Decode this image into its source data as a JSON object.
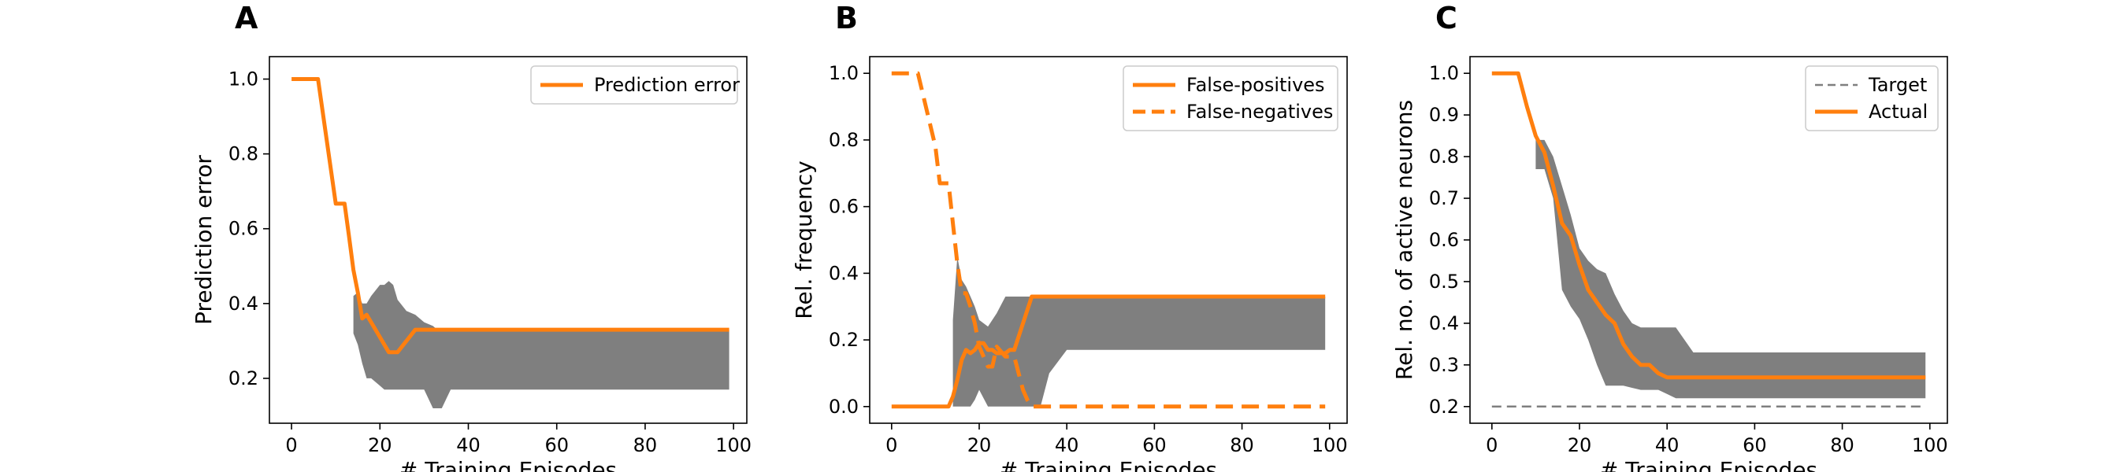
{
  "chart_data": [
    {
      "type": "line",
      "panel": "A",
      "xlabel": "# Training Episodes",
      "ylabel": "Prediction error",
      "xlim": [
        -5,
        103
      ],
      "ylim": [
        0.08,
        1.06
      ],
      "xticks": [
        0,
        20,
        40,
        60,
        80,
        100
      ],
      "yticks": [
        0.2,
        0.4,
        0.6,
        0.8,
        1.0
      ],
      "ytick_labels": [
        "0.2",
        "0.4",
        "0.6",
        "0.8",
        "1.0"
      ],
      "legend_position": "top-right",
      "series": [
        {
          "name": "Prediction error",
          "color": "#ff7f0e",
          "style": "solid",
          "x": [
            0,
            6,
            10,
            12,
            13,
            14,
            15,
            16,
            17,
            18,
            20,
            22,
            24,
            26,
            28,
            30,
            32,
            34,
            36,
            40,
            50,
            60,
            70,
            80,
            90,
            99
          ],
          "y": [
            1.0,
            1.0,
            0.667,
            0.667,
            0.58,
            0.49,
            0.43,
            0.36,
            0.37,
            0.35,
            0.31,
            0.27,
            0.27,
            0.3,
            0.33,
            0.33,
            0.33,
            0.33,
            0.33,
            0.33,
            0.33,
            0.33,
            0.33,
            0.33,
            0.33,
            0.33
          ]
        }
      ],
      "band": {
        "color": "#7f7f7f",
        "x": [
          14,
          15,
          16,
          17,
          18,
          20,
          21,
          22,
          23,
          24,
          26,
          28,
          30,
          32,
          33,
          34,
          36,
          40,
          60,
          80,
          99
        ],
        "upper": [
          0.42,
          0.43,
          0.4,
          0.4,
          0.42,
          0.45,
          0.45,
          0.46,
          0.45,
          0.41,
          0.38,
          0.37,
          0.35,
          0.34,
          0.33,
          0.33,
          0.33,
          0.33,
          0.33,
          0.33,
          0.33
        ],
        "lower": [
          0.32,
          0.29,
          0.24,
          0.2,
          0.2,
          0.18,
          0.17,
          0.17,
          0.17,
          0.17,
          0.17,
          0.17,
          0.17,
          0.12,
          0.12,
          0.12,
          0.17,
          0.17,
          0.17,
          0.17,
          0.17
        ]
      }
    },
    {
      "type": "line",
      "panel": "B",
      "xlabel": "# Training Episodes",
      "ylabel": "Rel. frequency",
      "xlim": [
        -5,
        104
      ],
      "ylim": [
        -0.05,
        1.05
      ],
      "xticks": [
        0,
        20,
        40,
        60,
        80,
        100
      ],
      "yticks": [
        0.0,
        0.2,
        0.4,
        0.6,
        0.8,
        1.0
      ],
      "ytick_labels": [
        "0.0",
        "0.2",
        "0.4",
        "0.6",
        "0.8",
        "1.0"
      ],
      "legend_position": "top-right",
      "series": [
        {
          "name": "False-positives",
          "color": "#ff7f0e",
          "style": "solid",
          "x": [
            0,
            13,
            14,
            15,
            16,
            17,
            18,
            19,
            20,
            21,
            22,
            23,
            24,
            26,
            27,
            28,
            30,
            32,
            34,
            40,
            60,
            80,
            99
          ],
          "y": [
            0,
            0,
            0.03,
            0.08,
            0.14,
            0.17,
            0.16,
            0.17,
            0.19,
            0.19,
            0.17,
            0.17,
            0.16,
            0.16,
            0.17,
            0.17,
            0.25,
            0.33,
            0.33,
            0.33,
            0.33,
            0.33,
            0.33
          ]
        },
        {
          "name": "False-negatives",
          "color": "#ff7f0e",
          "style": "dashed",
          "x": [
            0,
            6,
            10,
            11,
            12,
            13,
            14,
            15,
            16,
            17,
            18,
            19,
            20,
            22,
            23,
            24,
            26,
            28,
            30,
            31,
            32,
            34,
            40,
            60,
            80,
            99
          ],
          "y": [
            1.0,
            1.0,
            0.78,
            0.67,
            0.67,
            0.67,
            0.55,
            0.43,
            0.34,
            0.34,
            0.3,
            0.25,
            0.18,
            0.12,
            0.12,
            0.18,
            0.15,
            0.15,
            0.05,
            0.02,
            0.0,
            0.0,
            0.0,
            0.0,
            0.0,
            0.0
          ]
        }
      ],
      "band": {
        "color": "#7f7f7f",
        "x": [
          14,
          15,
          16,
          17,
          18,
          19,
          20,
          22,
          24,
          26,
          28,
          30,
          32,
          34,
          36,
          40,
          60,
          80,
          99
        ],
        "upper": [
          0.26,
          0.45,
          0.38,
          0.36,
          0.33,
          0.3,
          0.26,
          0.24,
          0.28,
          0.33,
          0.33,
          0.33,
          0.33,
          0.33,
          0.33,
          0.33,
          0.33,
          0.33,
          0.33
        ],
        "lower": [
          0.0,
          0.0,
          0.0,
          0.0,
          0.0,
          0.02,
          0.05,
          0.0,
          0.0,
          0.0,
          0.0,
          0.0,
          0.0,
          0.0,
          0.1,
          0.17,
          0.17,
          0.17,
          0.17
        ]
      }
    },
    {
      "type": "line",
      "panel": "C",
      "xlabel": "# Training Episodes",
      "ylabel": "Rel. no. of active neurons",
      "xlim": [
        -5,
        104
      ],
      "ylim": [
        0.16,
        1.04
      ],
      "xticks": [
        0,
        20,
        40,
        60,
        80,
        100
      ],
      "yticks": [
        0.2,
        0.3,
        0.4,
        0.5,
        0.6,
        0.7,
        0.8,
        0.9,
        1.0
      ],
      "ytick_labels": [
        "0.2",
        "0.3",
        "0.4",
        "0.5",
        "0.6",
        "0.7",
        "0.8",
        "0.9",
        "1.0"
      ],
      "legend_position": "top-right",
      "series": [
        {
          "name": "Target",
          "color": "#7f7f7f",
          "style": "dashed",
          "x": [
            0,
            99
          ],
          "y": [
            0.2,
            0.2
          ]
        },
        {
          "name": "Actual",
          "color": "#ff7f0e",
          "style": "solid",
          "x": [
            0,
            6,
            8,
            10,
            12,
            14,
            16,
            18,
            20,
            22,
            24,
            26,
            28,
            30,
            32,
            34,
            36,
            38,
            40,
            42,
            50,
            60,
            70,
            80,
            90,
            99
          ],
          "y": [
            1.0,
            1.0,
            0.92,
            0.85,
            0.81,
            0.73,
            0.64,
            0.61,
            0.54,
            0.48,
            0.45,
            0.42,
            0.4,
            0.35,
            0.32,
            0.3,
            0.3,
            0.28,
            0.27,
            0.27,
            0.27,
            0.27,
            0.27,
            0.27,
            0.27,
            0.27
          ]
        }
      ],
      "band": {
        "color": "#7f7f7f",
        "x": [
          10,
          12,
          14,
          16,
          18,
          20,
          22,
          24,
          26,
          28,
          30,
          32,
          34,
          36,
          38,
          40,
          42,
          44,
          46,
          50,
          60,
          80,
          99
        ],
        "upper": [
          0.84,
          0.84,
          0.8,
          0.73,
          0.66,
          0.58,
          0.55,
          0.53,
          0.52,
          0.47,
          0.43,
          0.4,
          0.39,
          0.39,
          0.39,
          0.39,
          0.39,
          0.36,
          0.33,
          0.33,
          0.33,
          0.33,
          0.33
        ],
        "lower": [
          0.77,
          0.77,
          0.7,
          0.48,
          0.44,
          0.41,
          0.36,
          0.3,
          0.25,
          0.25,
          0.25,
          0.245,
          0.24,
          0.24,
          0.24,
          0.23,
          0.22,
          0.22,
          0.22,
          0.22,
          0.22,
          0.22,
          0.22
        ]
      }
    }
  ]
}
